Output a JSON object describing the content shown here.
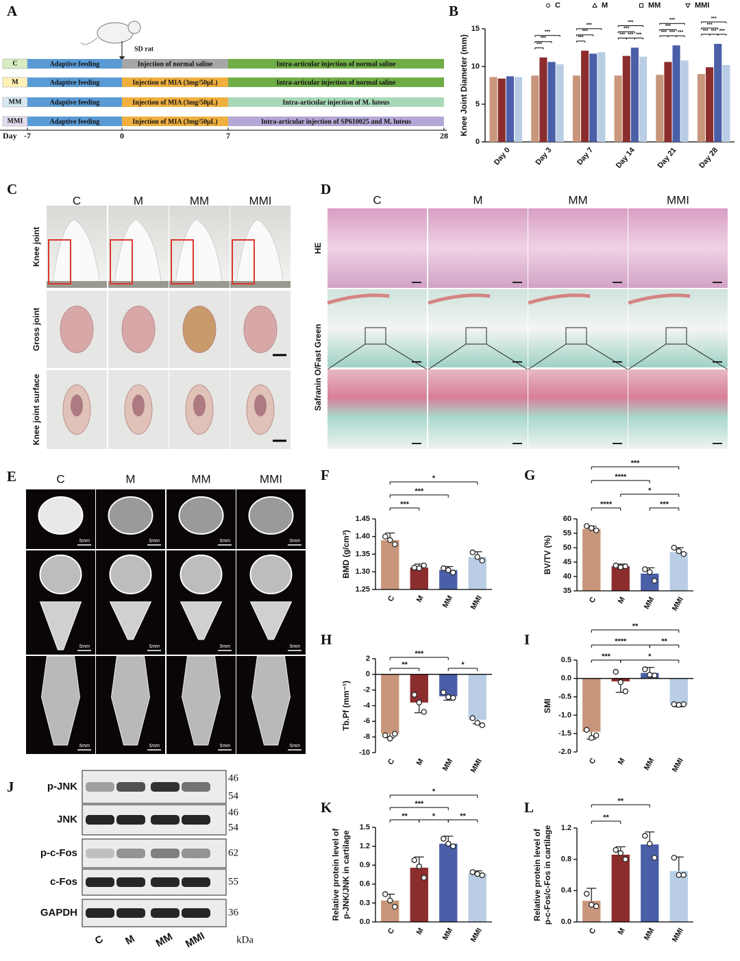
{
  "timeline": {
    "label": "A",
    "animal": "SD rat",
    "day_label": "Day",
    "days": [
      "-7",
      "0",
      "7",
      "28"
    ],
    "rows": [
      {
        "group": "C",
        "phases": [
          "Adaptive feeding",
          "Injection of normal saline",
          "Intra-articular injection of normal saline"
        ]
      },
      {
        "group": "M",
        "phases": [
          "Adaptive feeding",
          "Injection of MIA (3mg/50μL)",
          "Intra-articular injection of normal saline"
        ]
      },
      {
        "group": "MM",
        "phases": [
          "Adaptive feeding",
          "Injection of MIA (3mg/50μL)",
          "Intra-articular injection of M. luteus"
        ]
      },
      {
        "group": "MMI",
        "phases": [
          "Adaptive feeding",
          "Injection of MIA (3mg/50μL)",
          "Intra-articular injection of SP610025 and M. luteus"
        ]
      }
    ]
  },
  "photos": {
    "label": "C",
    "columns": [
      "C",
      "M",
      "MM",
      "MMI"
    ],
    "rows": [
      "Knee joint",
      "Gross joint",
      "Knee joint surface"
    ]
  },
  "histology": {
    "label": "D",
    "columns": [
      "C",
      "M",
      "MM",
      "MMI"
    ],
    "rows": [
      "HE",
      "Safranin O/Fast Green"
    ]
  },
  "microct": {
    "label": "E",
    "columns": [
      "C",
      "M",
      "MM",
      "MMI"
    ],
    "scale": "5mm"
  },
  "blot": {
    "label": "J",
    "proteins": [
      "p-JNK",
      "JNK",
      "p-c-Fos",
      "c-Fos",
      "GAPDH"
    ],
    "kda": [
      [
        "46",
        "54"
      ],
      [
        "46",
        "54"
      ],
      [
        "62"
      ],
      [
        "55"
      ],
      [
        "36"
      ]
    ],
    "lanes": [
      "C",
      "M",
      "MM",
      "MMI"
    ],
    "unit": "kDa"
  },
  "chart_data": [
    {
      "type": "grouped_bar",
      "label": "B",
      "ylabel": "Knee Joint Diameter (mm)",
      "categories": [
        "Day 0",
        "Day 3",
        "Day 7",
        "Day 14",
        "Day 21",
        "Day 28"
      ],
      "series": [
        {
          "name": "C",
          "color": "#c8967a",
          "values": [
            8.6,
            8.8,
            8.8,
            8.8,
            8.9,
            9.0
          ]
        },
        {
          "name": "M",
          "color": "#8c2d2d",
          "values": [
            8.4,
            11.2,
            12.1,
            11.4,
            10.6,
            9.9
          ]
        },
        {
          "name": "MM",
          "color": "#4a5fa8",
          "values": [
            8.7,
            10.6,
            11.7,
            12.5,
            12.8,
            13.0
          ]
        },
        {
          "name": "MMI",
          "color": "#b9cde5",
          "values": [
            8.6,
            10.3,
            11.9,
            11.3,
            10.8,
            10.2
          ]
        }
      ],
      "ylim": [
        0,
        15
      ],
      "yticks": [
        0,
        5,
        10,
        15
      ],
      "brackets": [
        {
          "category": 1,
          "pair": [
            0,
            1
          ],
          "label": "***"
        },
        {
          "category": 1,
          "pair": [
            0,
            2
          ],
          "label": "***"
        },
        {
          "category": 1,
          "pair": [
            0,
            3
          ],
          "label": "***"
        },
        {
          "category": 2,
          "pair": [
            0,
            1
          ],
          "label": "***"
        },
        {
          "category": 2,
          "pair": [
            0,
            2
          ],
          "label": "***"
        },
        {
          "category": 2,
          "pair": [
            0,
            3
          ],
          "label": "***"
        },
        {
          "category": 3,
          "pair": [
            0,
            1
          ],
          "label": "***"
        },
        {
          "category": 3,
          "pair": [
            1,
            2
          ],
          "label": "***"
        },
        {
          "category": 3,
          "pair": [
            2,
            3
          ],
          "label": "***"
        },
        {
          "category": 3,
          "pair": [
            0,
            2
          ],
          "label": "***"
        },
        {
          "category": 3,
          "pair": [
            0,
            3
          ],
          "label": "***"
        },
        {
          "category": 4,
          "pair": [
            0,
            1
          ],
          "label": "***"
        },
        {
          "category": 4,
          "pair": [
            1,
            2
          ],
          "label": "***"
        },
        {
          "category": 4,
          "pair": [
            2,
            3
          ],
          "label": "***"
        },
        {
          "category": 4,
          "pair": [
            0,
            2
          ],
          "label": "***"
        },
        {
          "category": 4,
          "pair": [
            0,
            3
          ],
          "label": "***"
        },
        {
          "category": 5,
          "pair": [
            0,
            1
          ],
          "label": "***"
        },
        {
          "category": 5,
          "pair": [
            1,
            2
          ],
          "label": "***"
        },
        {
          "category": 5,
          "pair": [
            2,
            3
          ],
          "label": "***"
        },
        {
          "category": 5,
          "pair": [
            0,
            2
          ],
          "label": "***"
        },
        {
          "category": 5,
          "pair": [
            0,
            3
          ],
          "label": "***"
        }
      ]
    },
    {
      "type": "bar",
      "label": "F",
      "ylabel": [
        "BMD (g/cm³)"
      ],
      "categories": [
        "C",
        "M",
        "MM",
        "MMI"
      ],
      "colors": [
        "#c8967a",
        "#8c2d2d",
        "#4a5fa8",
        "#b9cde5"
      ],
      "values": [
        1.39,
        1.312,
        1.305,
        1.342
      ],
      "errors": [
        0.02,
        0.01,
        0.01,
        0.015
      ],
      "points": [
        [
          1.4,
          1.39,
          1.378
        ],
        [
          1.312,
          1.31,
          1.318
        ],
        [
          1.31,
          1.305,
          1.298
        ],
        [
          1.355,
          1.342,
          1.332
        ]
      ],
      "ylim": [
        1.25,
        1.45
      ],
      "yticks": [
        1.25,
        {
          "value": 1.3,
          "label": "1.30"
        },
        1.35,
        {
          "value": 1.4,
          "label": "1.40"
        },
        1.45
      ],
      "brackets": [
        {
          "pair": [
            0,
            1
          ],
          "label": "***"
        },
        {
          "pair": [
            0,
            2
          ],
          "label": "***"
        },
        {
          "pair": [
            0,
            3
          ],
          "label": "*"
        }
      ]
    },
    {
      "type": "bar",
      "label": "G",
      "ylabel": [
        "BV/TV (%)"
      ],
      "categories": [
        "C",
        "M",
        "MM",
        "MMI"
      ],
      "colors": [
        "#c8967a",
        "#8c2d2d",
        "#4a5fa8",
        "#b9cde5"
      ],
      "values": [
        56.5,
        43.5,
        41,
        48.5
      ],
      "errors": [
        1,
        0.8,
        2,
        1.5
      ],
      "points": [
        [
          57.5,
          56.8,
          56
        ],
        [
          43.8,
          43.2,
          43.5
        ],
        [
          42.5,
          41.5,
          38.5
        ],
        [
          50,
          48.8,
          47.8
        ]
      ],
      "ylim": [
        35,
        60
      ],
      "yticks": [
        35,
        40,
        45,
        50,
        55,
        60
      ],
      "brackets": [
        {
          "pair": [
            2,
            3
          ],
          "label": "***"
        },
        {
          "pair": [
            0,
            1
          ],
          "label": "****"
        },
        {
          "pair": [
            1,
            3
          ],
          "label": "*"
        },
        {
          "pair": [
            0,
            2
          ],
          "label": "****"
        },
        {
          "pair": [
            0,
            3
          ],
          "label": "***"
        }
      ]
    },
    {
      "type": "bar",
      "label": "H",
      "ylabel": [
        "Tb.Pf (mm⁻¹)"
      ],
      "categories": [
        "C",
        "M",
        "MM",
        "MMI"
      ],
      "colors": [
        "#c8967a",
        "#8c2d2d",
        "#4a5fa8",
        "#b9cde5"
      ],
      "values": [
        -7.6,
        -3.6,
        -2.8,
        -5.8
      ],
      "errors": [
        0.5,
        1.3,
        0.5,
        0.5
      ],
      "points": [
        [
          -7.8,
          -8.2,
          -7.6
        ],
        [
          -2.6,
          -3.6,
          -4.8
        ],
        [
          -2.3,
          -2.9,
          -3.0
        ],
        [
          -5.6,
          -6.2,
          -6.5
        ]
      ],
      "ylim": [
        -10,
        2
      ],
      "yticks": [
        -10,
        -8,
        -6,
        -4,
        -2,
        0,
        2
      ],
      "brackets": [
        {
          "pair": [
            0,
            1
          ],
          "label": "**"
        },
        {
          "pair": [
            2,
            3
          ],
          "label": "*"
        },
        {
          "pair": [
            0,
            2
          ],
          "label": "***"
        }
      ]
    },
    {
      "type": "bar",
      "label": "I",
      "ylabel": [
        "SMI"
      ],
      "categories": [
        "C",
        "M",
        "MM",
        "MMI"
      ],
      "colors": [
        "#c8967a",
        "#8c2d2d",
        "#4a5fa8",
        "#b9cde5"
      ],
      "values": [
        -1.45,
        -0.08,
        0.15,
        -0.72
      ],
      "errors": [
        0.2,
        0.3,
        0.15,
        0.05
      ],
      "points": [
        [
          -1.4,
          -1.62,
          -1.55
        ],
        [
          0.18,
          -0.1,
          -0.35
        ],
        [
          0.25,
          0.1,
          0.08
        ],
        [
          -0.7,
          -0.72,
          -0.7
        ]
      ],
      "ylim": [
        -2,
        0.5
      ],
      "yticks": [
        {
          "value": -2,
          "label": "-2.0"
        },
        -1.5,
        {
          "value": -1,
          "label": "-1.0"
        },
        -0.5,
        {
          "value": 0,
          "label": "0.0"
        },
        0.5
      ],
      "brackets": [
        {
          "pair": [
            0,
            1
          ],
          "label": "***"
        },
        {
          "pair": [
            1,
            3
          ],
          "label": "*"
        },
        {
          "pair": [
            0,
            2
          ],
          "label": "****"
        },
        {
          "pair": [
            2,
            3
          ],
          "label": "**"
        },
        {
          "pair": [
            0,
            3
          ],
          "label": "**"
        }
      ]
    },
    {
      "type": "bar",
      "label": "K",
      "ylabel": [
        "Relative protein level of",
        "p-JNK/JNK in cartilage"
      ],
      "categories": [
        "C",
        "M",
        "MM",
        "MMI"
      ],
      "colors": [
        "#c8967a",
        "#8c2d2d",
        "#4a5fa8",
        "#b9cde5"
      ],
      "values": [
        0.34,
        0.86,
        1.24,
        0.77
      ],
      "errors": [
        0.1,
        0.17,
        0.12,
        0.04
      ],
      "points": [
        [
          0.44,
          0.34,
          0.24
        ],
        [
          0.98,
          0.88,
          0.7
        ],
        [
          1.32,
          1.24,
          1.2
        ],
        [
          0.79,
          0.76,
          0.74
        ]
      ],
      "ylim": [
        0,
        1.5
      ],
      "yticks": [
        {
          "value": 0,
          "label": "0.0"
        },
        0.3,
        0.6,
        0.9,
        1.2,
        1.5
      ],
      "brackets": [
        {
          "pair": [
            0,
            1
          ],
          "label": "**"
        },
        {
          "pair": [
            1,
            2
          ],
          "label": "*"
        },
        {
          "pair": [
            0,
            2
          ],
          "label": "***"
        },
        {
          "pair": [
            2,
            3
          ],
          "label": "**"
        },
        {
          "pair": [
            0,
            3
          ],
          "label": "*"
        }
      ]
    },
    {
      "type": "bar",
      "label": "L",
      "ylabel": [
        "Relative protein level of",
        "p-c-Fos/c-Fos in cartilage"
      ],
      "categories": [
        "C",
        "M",
        "MM",
        "MMI"
      ],
      "colors": [
        "#c8967a",
        "#8c2d2d",
        "#4a5fa8",
        "#b9cde5"
      ],
      "values": [
        0.27,
        0.86,
        0.99,
        0.65
      ],
      "errors": [
        0.16,
        0.1,
        0.16,
        0.18
      ],
      "points": [
        [
          0.36,
          0.22,
          0.2
        ],
        [
          0.92,
          0.88,
          0.8
        ],
        [
          1.1,
          1.0,
          0.82
        ],
        [
          0.82,
          0.6,
          0.6
        ]
      ],
      "ylim": [
        0,
        1.2
      ],
      "yticks": [
        {
          "value": 0,
          "label": "0.0"
        },
        0.4,
        0.8,
        1.2
      ],
      "brackets": [
        {
          "pair": [
            0,
            1
          ],
          "label": "**"
        },
        {
          "pair": [
            0,
            2
          ],
          "label": "**"
        }
      ]
    }
  ]
}
